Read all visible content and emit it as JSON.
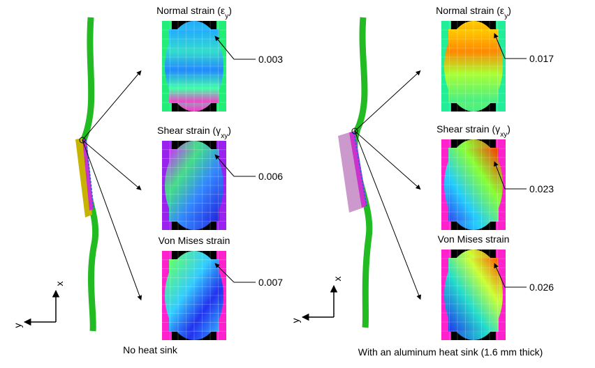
{
  "panels": [
    {
      "caption": "No heat sink",
      "axes": {
        "x": "x",
        "y": "y"
      },
      "maps": [
        {
          "title": [
            "Normal strain (ε",
            "y",
            ")"
          ],
          "value": "0.003"
        },
        {
          "title": [
            "Shear strain (γ",
            "xy",
            ")"
          ],
          "value": "0.006"
        },
        {
          "title": [
            "Von Mises strain"
          ],
          "value": "0.007"
        }
      ]
    },
    {
      "caption": "With an aluminum heat sink (1.6 mm thick)",
      "axes": {
        "x": "x",
        "y": "y"
      },
      "maps": [
        {
          "title": [
            "Normal strain (ε",
            "y",
            ")"
          ],
          "value": "0.017"
        },
        {
          "title": [
            "Shear strain (γ",
            "xy",
            ")"
          ],
          "value": "0.023"
        },
        {
          "title": [
            "Von Mises strain"
          ],
          "value": "0.026"
        }
      ]
    }
  ]
}
